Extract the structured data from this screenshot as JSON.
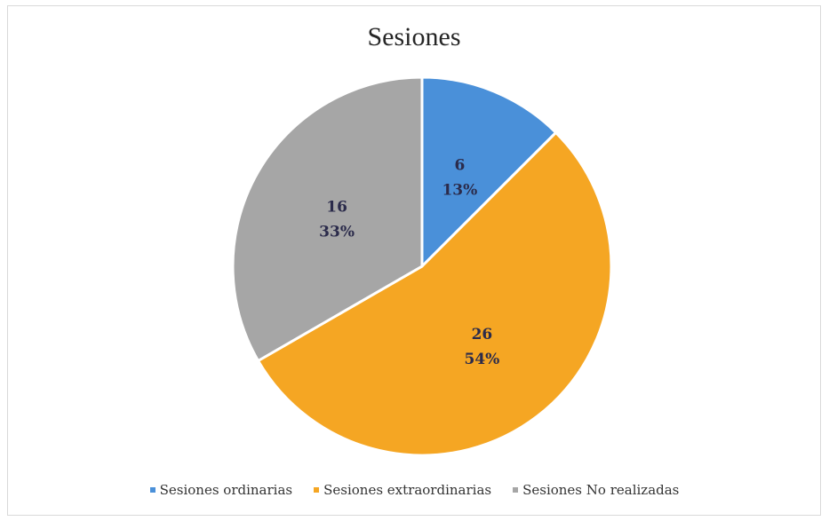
{
  "chart_data": {
    "type": "pie",
    "title": "Sesiones",
    "categories": [
      "Sesiones ordinarias",
      "Sesiones extraordinarias",
      "Sesiones No realizadas"
    ],
    "values": [
      6,
      26,
      16
    ],
    "percent_labels": [
      "13%",
      "54%",
      "33%"
    ],
    "colors": [
      "#4a90d9",
      "#f5a623",
      "#a6a6a6"
    ],
    "legend_position": "bottom",
    "start_angle_deg": 0,
    "direction": "clockwise"
  }
}
